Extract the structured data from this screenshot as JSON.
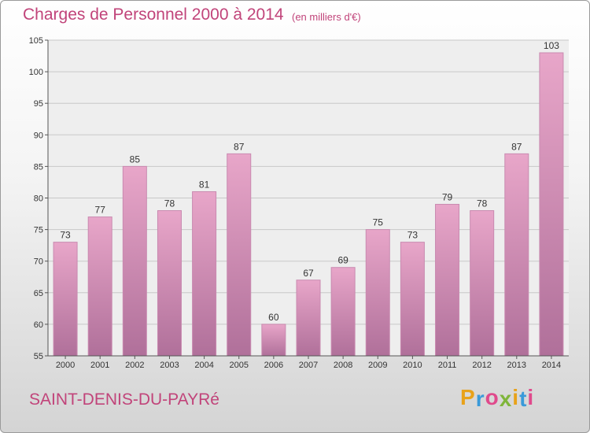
{
  "header": {
    "title": "Charges de Personnel 2000 à 2014",
    "subtitle": "(en milliers d'€)"
  },
  "footer": {
    "place": "SAINT-DENIS-DU-PAYRé",
    "brand_letters": [
      "P",
      "r",
      "o",
      "x",
      "i",
      "t",
      "i"
    ],
    "brand_colors": [
      "#e8a21a",
      "#3a9ad9",
      "#e04a8c",
      "#7fb53a",
      "#e8a21a",
      "#3a9ad9",
      "#e04a8c"
    ]
  },
  "chart_data": {
    "type": "bar",
    "title": "Charges de Personnel 2000 à 2014",
    "subtitle": "(en milliers d'€)",
    "categories": [
      "2000",
      "2001",
      "2002",
      "2003",
      "2004",
      "2005",
      "2006",
      "2007",
      "2008",
      "2009",
      "2010",
      "2011",
      "2012",
      "2013",
      "2014"
    ],
    "values": [
      73,
      77,
      85,
      78,
      81,
      87,
      60,
      67,
      69,
      75,
      73,
      79,
      78,
      87,
      103
    ],
    "ylim": [
      55,
      105
    ],
    "yticks": [
      55,
      60,
      65,
      70,
      75,
      80,
      85,
      90,
      95,
      100,
      105
    ],
    "grid": true,
    "bar_color_top": "#e8a6c9",
    "bar_color_bottom": "#b0709a"
  }
}
